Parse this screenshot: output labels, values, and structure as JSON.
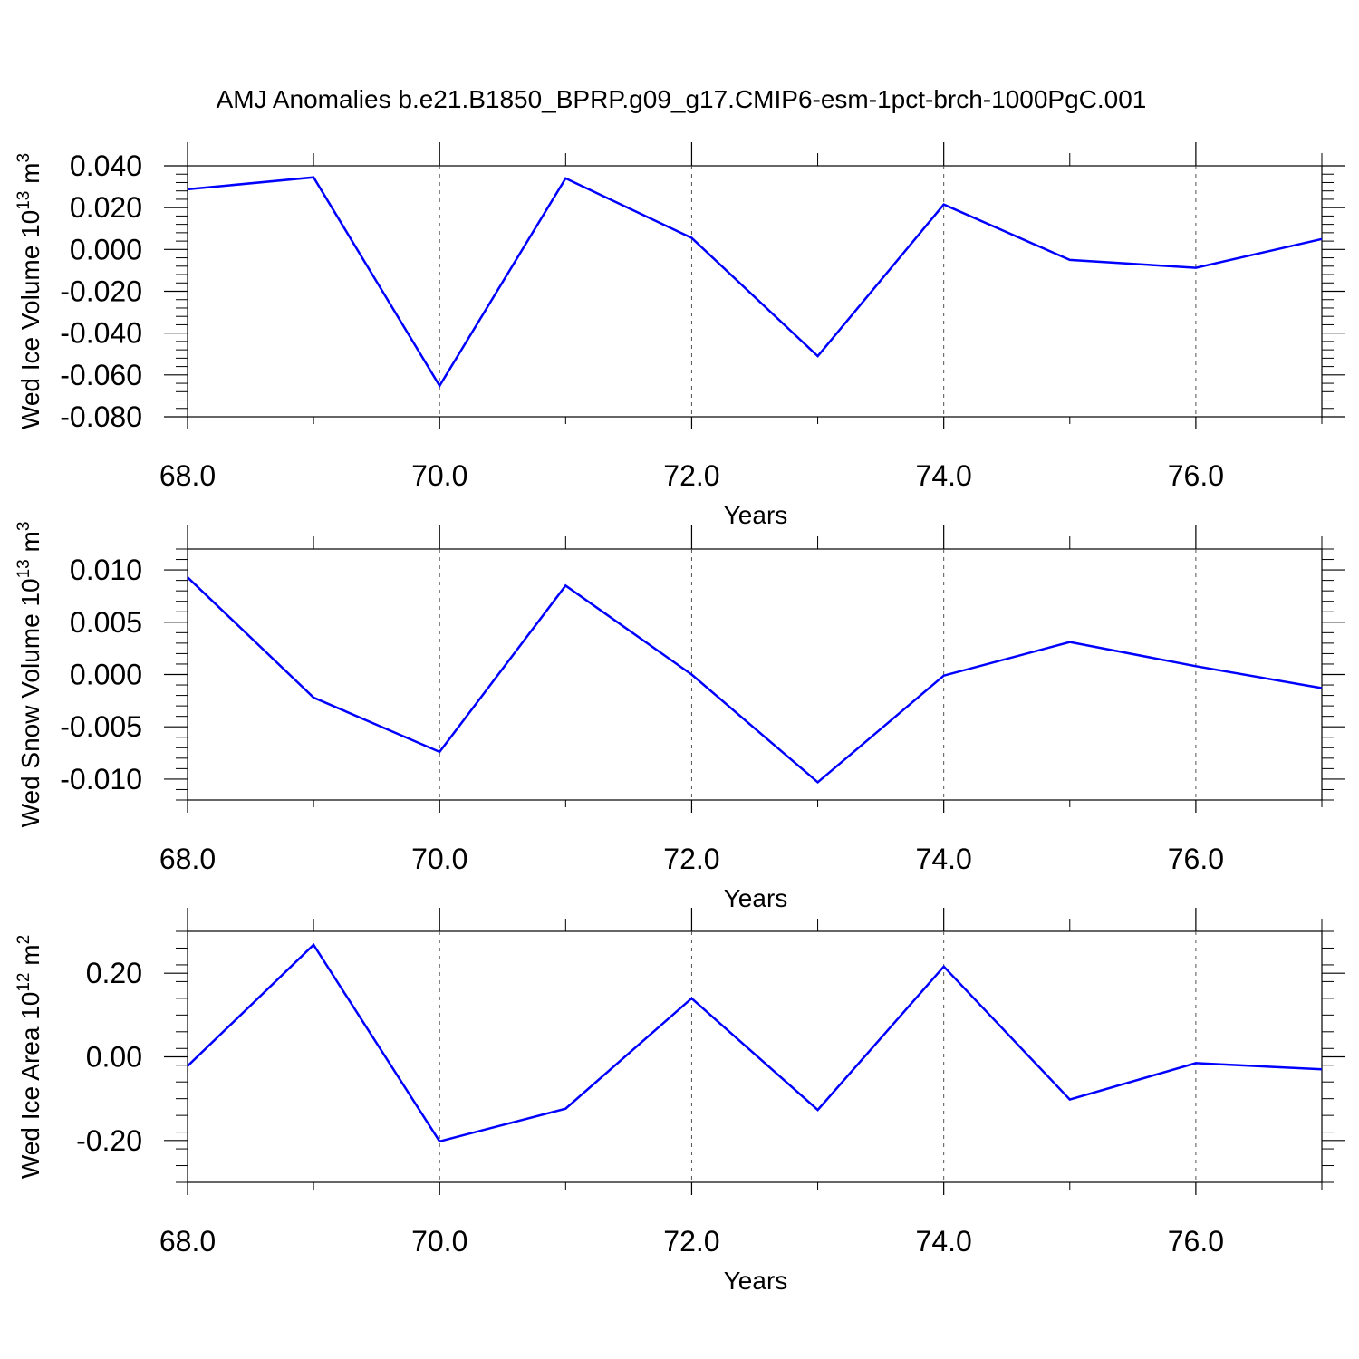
{
  "title": "AMJ Anomalies b.e21.B1850_BPRP.g09_g17.CMIP6-esm-1pct-brch-1000PgC.001",
  "colors": {
    "line": "#0000ff",
    "axis": "#000000",
    "grid": "#555555"
  },
  "chart_data": [
    {
      "type": "line",
      "ylabel": {
        "main": "Wed Ice Volume 10",
        "exp": "13",
        "unit": " m",
        "unit_exp": "3"
      },
      "xlabel": "Years",
      "xlim": [
        68,
        77
      ],
      "ylim": [
        -0.08,
        0.04
      ],
      "xticks": [
        68,
        70,
        72,
        74,
        76
      ],
      "xtick_labels": [
        "68.0",
        "70.0",
        "72.0",
        "74.0",
        "76.0"
      ],
      "yticks": [
        0.04,
        0.02,
        0.0,
        -0.02,
        -0.04,
        -0.06,
        -0.08
      ],
      "ytick_labels": [
        "0.040",
        "0.020",
        "0.000",
        "-0.020",
        "-0.040",
        "-0.060",
        "-0.080"
      ],
      "grid": "vertical dashed",
      "series": [
        {
          "x": [
            68,
            69,
            70,
            71,
            72,
            73,
            74,
            75,
            76,
            77
          ],
          "y": [
            0.0288,
            0.0345,
            -0.0652,
            0.034,
            0.0055,
            -0.051,
            0.0215,
            -0.005,
            -0.0088,
            0.005
          ]
        }
      ]
    },
    {
      "type": "line",
      "ylabel": {
        "main": "Wed Snow Volume 10",
        "exp": "13",
        "unit": " m",
        "unit_exp": "3"
      },
      "xlabel": "Years",
      "xlim": [
        68,
        77
      ],
      "ylim": [
        -0.012,
        0.012
      ],
      "xticks": [
        68,
        70,
        72,
        74,
        76
      ],
      "xtick_labels": [
        "68.0",
        "70.0",
        "72.0",
        "74.0",
        "76.0"
      ],
      "yticks": [
        0.01,
        0.005,
        0.0,
        -0.005,
        -0.01
      ],
      "ytick_labels": [
        "0.010",
        "0.005",
        "0.000",
        "-0.005",
        "-0.010"
      ],
      "grid": "vertical dashed",
      "series": [
        {
          "x": [
            68,
            69,
            70,
            71,
            72,
            73,
            74,
            75,
            76,
            77
          ],
          "y": [
            0.0093,
            -0.0022,
            -0.0074,
            0.0085,
            0.0,
            -0.0103,
            -0.0001,
            0.0031,
            0.0008,
            -0.0013
          ]
        }
      ]
    },
    {
      "type": "line",
      "ylabel": {
        "main": "Wed Ice Area 10",
        "exp": "12",
        "unit": " m",
        "unit_exp": "2"
      },
      "xlabel": "Years",
      "xlim": [
        68,
        77
      ],
      "ylim": [
        -0.3,
        0.3
      ],
      "xticks": [
        68,
        70,
        72,
        74,
        76
      ],
      "xtick_labels": [
        "68.0",
        "70.0",
        "72.0",
        "74.0",
        "76.0"
      ],
      "yticks": [
        0.2,
        0.0,
        -0.2
      ],
      "ytick_labels": [
        "0.20",
        "0.00",
        "-0.20"
      ],
      "grid": "vertical dashed",
      "series": [
        {
          "x": [
            68,
            69,
            70,
            71,
            72,
            73,
            74,
            75,
            76,
            77
          ],
          "y": [
            -0.022,
            0.268,
            -0.202,
            -0.124,
            0.14,
            -0.127,
            0.216,
            -0.102,
            -0.015,
            -0.03
          ]
        }
      ]
    }
  ]
}
